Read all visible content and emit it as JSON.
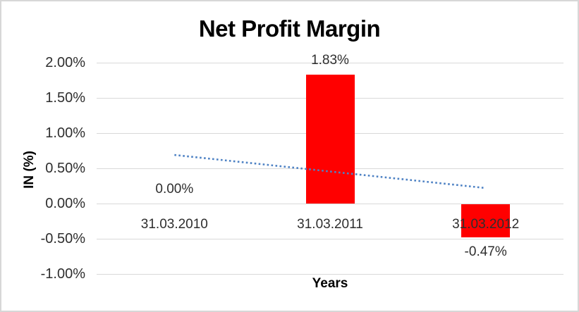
{
  "window": {
    "background": "#ffffff",
    "border_color": "#d7d7d7"
  },
  "chart_data": {
    "type": "bar",
    "title": "Net Profit Margin",
    "xlabel": "Years",
    "ylabel": "IN (%)",
    "categories": [
      "31.03.2010",
      "31.03.2011",
      "31.03.2012"
    ],
    "values": [
      0.0,
      1.83,
      -0.47
    ],
    "data_labels": [
      "0.00%",
      "1.83%",
      "-0.47%"
    ],
    "yticks": [
      "2.00%",
      "1.50%",
      "1.00%",
      "0.50%",
      "0.00%",
      "-0.50%",
      "-1.00%"
    ],
    "ylim": [
      -1.0,
      2.0
    ],
    "ytick_step": 0.5,
    "grid": true,
    "legend": false,
    "bar_color": "#ff0000",
    "gridline_color": "#d9d9d9",
    "text_color": "#2e2e2e",
    "trendline": {
      "type": "linear",
      "style": "dotted",
      "color": "#4e82c4",
      "start": {
        "category_index": 0,
        "value": 0.69
      },
      "end": {
        "category_index": 2,
        "value": 0.22
      }
    }
  }
}
